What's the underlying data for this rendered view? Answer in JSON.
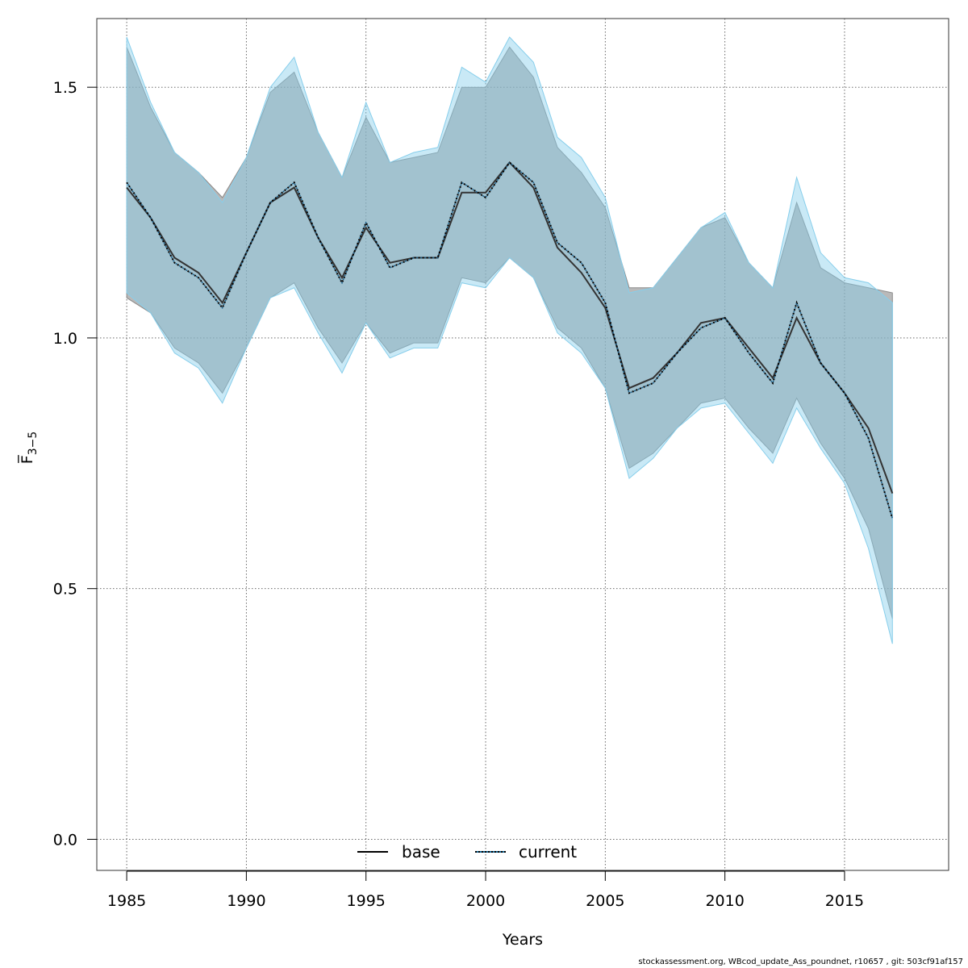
{
  "chart_data": {
    "type": "line",
    "xlabel": "Years",
    "ylabel": "F̅",
    "ylabel_sub": "3−5",
    "xlim": [
      1983.75,
      2019.35
    ],
    "ylim": [
      -0.062,
      1.637
    ],
    "x_ticks": [
      1985,
      1990,
      1995,
      2000,
      2005,
      2010,
      2015
    ],
    "x_tick_labels": [
      "1985",
      "1990",
      "1995",
      "2000",
      "2005",
      "2010",
      "2015"
    ],
    "y_ticks": [
      0.0,
      0.5,
      1.0,
      1.5
    ],
    "y_tick_labels": [
      "0.0",
      "0.5",
      "1.0",
      "1.5"
    ],
    "grid": true,
    "legend_position": "bottom",
    "years": [
      1985,
      1986,
      1987,
      1988,
      1989,
      1990,
      1991,
      1992,
      1993,
      1994,
      1995,
      1996,
      1997,
      1998,
      1999,
      2000,
      2001,
      2002,
      2003,
      2004,
      2005,
      2006,
      2007,
      2008,
      2009,
      2010,
      2011,
      2012,
      2013,
      2014,
      2015,
      2016,
      2017
    ],
    "series": [
      {
        "name": "base",
        "color": "#333333",
        "band_color": "#8a8a8a",
        "line_style": "solid",
        "values": [
          1.3,
          1.24,
          1.16,
          1.13,
          1.07,
          1.17,
          1.27,
          1.3,
          1.2,
          1.12,
          1.22,
          1.15,
          1.16,
          1.16,
          1.29,
          1.29,
          1.35,
          1.3,
          1.18,
          1.13,
          1.06,
          0.9,
          0.92,
          0.97,
          1.03,
          1.04,
          0.98,
          0.92,
          1.04,
          0.95,
          0.89,
          0.82,
          0.69
        ],
        "lower": [
          1.08,
          1.05,
          0.98,
          0.95,
          0.89,
          0.98,
          1.08,
          1.11,
          1.02,
          0.95,
          1.03,
          0.97,
          0.99,
          0.99,
          1.12,
          1.11,
          1.16,
          1.12,
          1.02,
          0.98,
          0.9,
          0.74,
          0.77,
          0.82,
          0.87,
          0.88,
          0.82,
          0.77,
          0.88,
          0.79,
          0.72,
          0.62,
          0.44
        ],
        "upper": [
          1.58,
          1.46,
          1.37,
          1.33,
          1.28,
          1.36,
          1.49,
          1.53,
          1.41,
          1.32,
          1.44,
          1.35,
          1.36,
          1.37,
          1.5,
          1.5,
          1.58,
          1.52,
          1.38,
          1.33,
          1.26,
          1.1,
          1.1,
          1.16,
          1.22,
          1.24,
          1.15,
          1.1,
          1.27,
          1.14,
          1.11,
          1.1,
          1.09
        ]
      },
      {
        "name": "current",
        "color": "#1a5f8a",
        "band_color": "#87ceeb",
        "line_style": "dotted",
        "values": [
          1.31,
          1.24,
          1.15,
          1.12,
          1.06,
          1.17,
          1.27,
          1.31,
          1.2,
          1.11,
          1.23,
          1.14,
          1.16,
          1.16,
          1.31,
          1.28,
          1.35,
          1.31,
          1.19,
          1.15,
          1.07,
          0.89,
          0.91,
          0.97,
          1.02,
          1.04,
          0.97,
          0.91,
          1.07,
          0.95,
          0.89,
          0.8,
          0.64
        ],
        "lower": [
          1.09,
          1.05,
          0.97,
          0.94,
          0.87,
          0.98,
          1.08,
          1.1,
          1.01,
          0.93,
          1.03,
          0.96,
          0.98,
          0.98,
          1.11,
          1.1,
          1.16,
          1.12,
          1.01,
          0.97,
          0.9,
          0.72,
          0.76,
          0.82,
          0.86,
          0.87,
          0.81,
          0.75,
          0.86,
          0.78,
          0.71,
          0.58,
          0.39
        ],
        "upper": [
          1.6,
          1.47,
          1.37,
          1.33,
          1.27,
          1.36,
          1.5,
          1.56,
          1.41,
          1.32,
          1.47,
          1.35,
          1.37,
          1.38,
          1.54,
          1.51,
          1.6,
          1.55,
          1.4,
          1.36,
          1.28,
          1.09,
          1.1,
          1.16,
          1.22,
          1.25,
          1.15,
          1.1,
          1.32,
          1.17,
          1.12,
          1.11,
          1.07
        ]
      }
    ]
  },
  "footer": "stockassessment.org, WBcod_update_Ass_poundnet, r10657 , git: 503cf91af157"
}
